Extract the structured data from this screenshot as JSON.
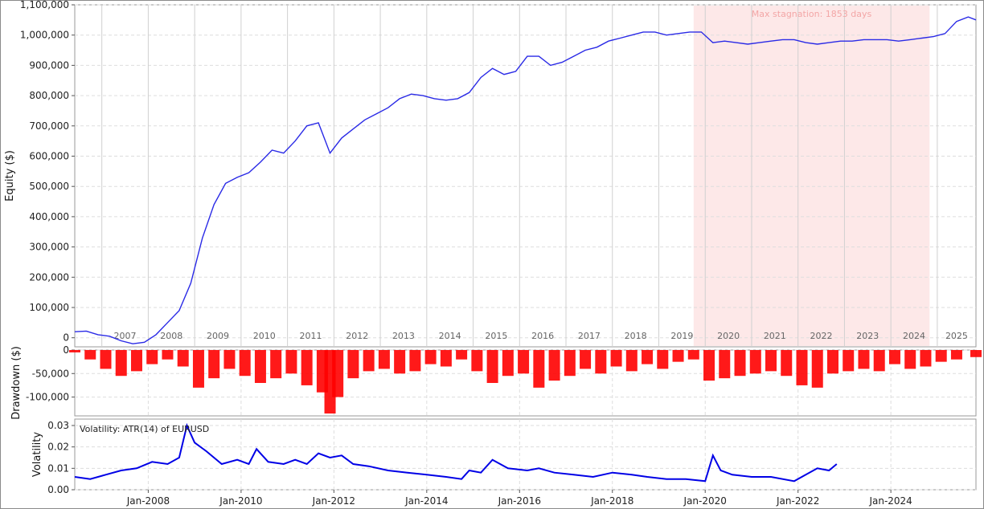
{
  "chart_data": [
    {
      "type": "line",
      "panel": "equity",
      "ylabel": "Equity ($)",
      "ylim": [
        -30000,
        1100000
      ],
      "y_ticks": [
        "0",
        "100,000",
        "200,000",
        "300,000",
        "400,000",
        "500,000",
        "600,000",
        "700,000",
        "800,000",
        "900,000",
        "1,000,000",
        "1,100,000"
      ],
      "year_labels": [
        "2007",
        "2008",
        "2009",
        "2010",
        "2011",
        "2012",
        "2013",
        "2014",
        "2015",
        "2016",
        "2017",
        "2018",
        "2019",
        "2020",
        "2021",
        "2022",
        "2023",
        "2024",
        "2025"
      ],
      "x_range": [
        "2006-06",
        "2025-11"
      ],
      "series_color": "#2a2ae6",
      "grid": true,
      "x": [
        "2006-06",
        "2006-09",
        "2006-12",
        "2007-03",
        "2007-06",
        "2007-09",
        "2007-12",
        "2008-03",
        "2008-06",
        "2008-09",
        "2008-12",
        "2009-03",
        "2009-06",
        "2009-09",
        "2009-12",
        "2010-03",
        "2010-06",
        "2010-09",
        "2010-12",
        "2011-03",
        "2011-06",
        "2011-09",
        "2011-12",
        "2012-03",
        "2012-06",
        "2012-09",
        "2012-12",
        "2013-03",
        "2013-06",
        "2013-09",
        "2013-12",
        "2014-03",
        "2014-06",
        "2014-09",
        "2014-12",
        "2015-03",
        "2015-06",
        "2015-09",
        "2015-12",
        "2016-03",
        "2016-06",
        "2016-09",
        "2016-12",
        "2017-03",
        "2017-06",
        "2017-09",
        "2017-12",
        "2018-03",
        "2018-06",
        "2018-09",
        "2018-12",
        "2019-03",
        "2019-06",
        "2019-09",
        "2019-12",
        "2020-03",
        "2020-06",
        "2020-09",
        "2020-12",
        "2021-03",
        "2021-06",
        "2021-09",
        "2021-12",
        "2022-03",
        "2022-06",
        "2022-09",
        "2022-12",
        "2023-03",
        "2023-06",
        "2023-09",
        "2023-12",
        "2024-03",
        "2024-06",
        "2024-09",
        "2024-12",
        "2025-03",
        "2025-06",
        "2025-09",
        "2025-11"
      ],
      "values": [
        20000,
        22000,
        10000,
        5000,
        -10000,
        -20000,
        -15000,
        10000,
        50000,
        90000,
        180000,
        330000,
        440000,
        510000,
        530000,
        545000,
        580000,
        620000,
        610000,
        650000,
        700000,
        710000,
        610000,
        660000,
        690000,
        720000,
        740000,
        760000,
        790000,
        805000,
        800000,
        790000,
        785000,
        790000,
        810000,
        860000,
        890000,
        870000,
        880000,
        930000,
        930000,
        900000,
        910000,
        930000,
        950000,
        960000,
        980000,
        990000,
        1000000,
        1010000,
        1010000,
        1000000,
        1005000,
        1010000,
        1010000,
        975000,
        980000,
        975000,
        970000,
        975000,
        980000,
        985000,
        985000,
        975000,
        970000,
        975000,
        980000,
        980000,
        985000,
        985000,
        985000,
        980000,
        985000,
        990000,
        995000,
        1005000,
        1045000,
        1060000,
        1050000
      ],
      "annotation": {
        "text": "Max stagnation: 1853 days",
        "start": "2019-10",
        "end": "2024-11",
        "color": "#fde8e8"
      }
    },
    {
      "type": "bar",
      "panel": "drawdown",
      "ylabel": "Drawdown ($)",
      "ylim": [
        -140000,
        0
      ],
      "y_ticks": [
        "0",
        "-50,000",
        "-100,000"
      ],
      "series_color": "#ff0000",
      "grid": true,
      "x": [
        "2006-06",
        "2006-10",
        "2007-02",
        "2007-06",
        "2007-10",
        "2008-02",
        "2008-06",
        "2008-10",
        "2009-02",
        "2009-06",
        "2009-10",
        "2010-02",
        "2010-06",
        "2010-10",
        "2011-02",
        "2011-06",
        "2011-10",
        "2011-12",
        "2012-02",
        "2012-06",
        "2012-10",
        "2013-02",
        "2013-06",
        "2013-10",
        "2014-02",
        "2014-06",
        "2014-10",
        "2015-02",
        "2015-06",
        "2015-10",
        "2016-02",
        "2016-06",
        "2016-10",
        "2017-02",
        "2017-06",
        "2017-10",
        "2018-02",
        "2018-06",
        "2018-10",
        "2019-02",
        "2019-06",
        "2019-10",
        "2020-02",
        "2020-06",
        "2020-10",
        "2021-02",
        "2021-06",
        "2021-10",
        "2022-02",
        "2022-06",
        "2022-10",
        "2023-02",
        "2023-06",
        "2023-10",
        "2024-02",
        "2024-06",
        "2024-10",
        "2025-02",
        "2025-06",
        "2025-11"
      ],
      "values": [
        -5000,
        -20000,
        -40000,
        -55000,
        -45000,
        -30000,
        -20000,
        -35000,
        -80000,
        -60000,
        -40000,
        -55000,
        -70000,
        -60000,
        -50000,
        -75000,
        -90000,
        -135000,
        -100000,
        -60000,
        -45000,
        -40000,
        -50000,
        -45000,
        -30000,
        -35000,
        -20000,
        -45000,
        -70000,
        -55000,
        -50000,
        -80000,
        -65000,
        -55000,
        -40000,
        -50000,
        -35000,
        -45000,
        -30000,
        -40000,
        -25000,
        -20000,
        -65000,
        -60000,
        -55000,
        -50000,
        -45000,
        -55000,
        -75000,
        -80000,
        -50000,
        -45000,
        -40000,
        -45000,
        -30000,
        -40000,
        -35000,
        -25000,
        -20000,
        -15000
      ]
    },
    {
      "type": "line",
      "panel": "volatility",
      "ylabel": "Volatility",
      "title": "Volatility: ATR(14) of EURUSD",
      "ylim": [
        0,
        0.033
      ],
      "y_ticks": [
        "0.00",
        "0.01",
        "0.02",
        "0.03"
      ],
      "x_ticks": [
        "Jan-2008",
        "Jan-2010",
        "Jan-2012",
        "Jan-2014",
        "Jan-2016",
        "Jan-2018",
        "Jan-2020",
        "Jan-2022",
        "Jan-2024"
      ],
      "series_color": "#0000e6",
      "grid": true,
      "x": [
        "2006-06",
        "2006-10",
        "2007-02",
        "2007-06",
        "2007-10",
        "2008-02",
        "2008-06",
        "2008-09",
        "2008-11",
        "2009-01",
        "2009-04",
        "2009-08",
        "2009-12",
        "2010-03",
        "2010-05",
        "2010-08",
        "2010-12",
        "2011-03",
        "2011-06",
        "2011-09",
        "2011-12",
        "2012-03",
        "2012-06",
        "2012-10",
        "2013-03",
        "2013-08",
        "2014-01",
        "2014-06",
        "2014-10",
        "2014-12",
        "2015-03",
        "2015-06",
        "2015-10",
        "2016-03",
        "2016-06",
        "2016-10",
        "2017-03",
        "2017-08",
        "2018-01",
        "2018-06",
        "2018-10",
        "2019-03",
        "2019-08",
        "2020-01",
        "2020-03",
        "2020-05",
        "2020-08",
        "2021-01",
        "2021-06",
        "2021-12",
        "2022-03",
        "2022-06",
        "2022-09",
        "2022-11"
      ],
      "values": [
        0.006,
        0.005,
        0.007,
        0.009,
        0.01,
        0.013,
        0.012,
        0.015,
        0.03,
        0.022,
        0.018,
        0.012,
        0.014,
        0.012,
        0.019,
        0.013,
        0.012,
        0.014,
        0.012,
        0.017,
        0.015,
        0.016,
        0.012,
        0.011,
        0.009,
        0.008,
        0.007,
        0.006,
        0.005,
        0.009,
        0.008,
        0.014,
        0.01,
        0.009,
        0.01,
        0.008,
        0.007,
        0.006,
        0.008,
        0.007,
        0.006,
        0.005,
        0.005,
        0.004,
        0.016,
        0.009,
        0.007,
        0.006,
        0.006,
        0.004,
        0.007,
        0.01,
        0.009,
        0.012
      ]
    }
  ]
}
